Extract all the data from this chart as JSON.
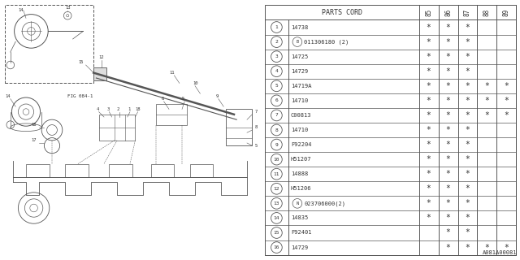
{
  "fig_label": "A081A00081",
  "table_title": "PARTS CORD",
  "col_headers": [
    "85",
    "86",
    "87",
    "88",
    "89"
  ],
  "rows": [
    {
      "num": "1",
      "prefix": "",
      "part": "14738",
      "marks": [
        1,
        1,
        1,
        0,
        0
      ]
    },
    {
      "num": "2",
      "prefix": "B",
      "part": "011306180 (2)",
      "marks": [
        1,
        1,
        1,
        0,
        0
      ]
    },
    {
      "num": "3",
      "prefix": "",
      "part": "14725",
      "marks": [
        1,
        1,
        1,
        0,
        0
      ]
    },
    {
      "num": "4",
      "prefix": "",
      "part": "14729",
      "marks": [
        1,
        1,
        1,
        0,
        0
      ]
    },
    {
      "num": "5",
      "prefix": "",
      "part": "14719A",
      "marks": [
        1,
        1,
        1,
        1,
        1
      ]
    },
    {
      "num": "6",
      "prefix": "",
      "part": "14710",
      "marks": [
        1,
        1,
        1,
        1,
        1
      ]
    },
    {
      "num": "7",
      "prefix": "",
      "part": "C00813",
      "marks": [
        1,
        1,
        1,
        1,
        1
      ]
    },
    {
      "num": "8",
      "prefix": "",
      "part": "14710",
      "marks": [
        1,
        1,
        1,
        0,
        0
      ]
    },
    {
      "num": "9",
      "prefix": "",
      "part": "F92204",
      "marks": [
        1,
        1,
        1,
        0,
        0
      ]
    },
    {
      "num": "10",
      "prefix": "",
      "part": "H51207",
      "marks": [
        1,
        1,
        1,
        0,
        0
      ]
    },
    {
      "num": "11",
      "prefix": "",
      "part": "14888",
      "marks": [
        1,
        1,
        1,
        0,
        0
      ]
    },
    {
      "num": "12",
      "prefix": "",
      "part": "H51206",
      "marks": [
        1,
        1,
        1,
        0,
        0
      ]
    },
    {
      "num": "13",
      "prefix": "N",
      "part": "023706000(2)",
      "marks": [
        1,
        1,
        1,
        0,
        0
      ]
    },
    {
      "num": "14",
      "prefix": "",
      "part": "14835",
      "marks": [
        1,
        1,
        1,
        0,
        0
      ]
    },
    {
      "num": "15",
      "prefix": "",
      "part": "F92401",
      "marks": [
        0,
        1,
        1,
        0,
        0
      ]
    },
    {
      "num": "16",
      "prefix": "",
      "part": "14729",
      "marks": [
        0,
        1,
        1,
        1,
        1
      ]
    }
  ],
  "bg_color": "#ffffff",
  "line_color": "#555555",
  "text_color": "#333333"
}
